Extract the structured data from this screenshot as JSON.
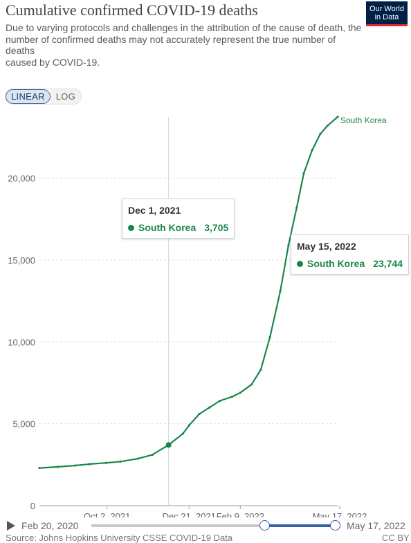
{
  "header": {
    "title": "Cumulative confirmed COVID-19 deaths",
    "subtitle_lines": [
      "Due to varying protocols and challenges in the attribution of the cause of death, the",
      "number of confirmed deaths may not accurately represent the true number of deaths",
      "caused by COVID-19."
    ],
    "logo_line1": "Our World",
    "logo_line2": "in Data"
  },
  "scale_toggle": {
    "linear_label": "LINEAR",
    "log_label": "LOG",
    "active": "linear"
  },
  "chart_data": {
    "type": "line",
    "title": "Cumulative confirmed COVID-19 deaths",
    "xlabel": "",
    "ylabel": "",
    "ylim": [
      0,
      23744
    ],
    "xlim": [
      "2021-07-28",
      "2022-05-15"
    ],
    "grid": "horizontal dashed",
    "y_ticks": [
      0,
      5000,
      10000,
      15000,
      20000
    ],
    "y_tick_labels": [
      "0",
      "5,000",
      "10,000",
      "15,000",
      "20,000"
    ],
    "x_ticks": [
      "2021-10-02",
      "2021-12-21",
      "2022-02-09",
      "2022-05-17"
    ],
    "x_tick_labels": [
      "Oct 2, 2021",
      "Dec 21, 2021",
      "Feb 9, 2022",
      "May 17, 2022"
    ],
    "series": [
      {
        "name": "South Korea",
        "color": "#18864b",
        "points": [
          [
            "2021-07-28",
            2300
          ],
          [
            "2021-08-15",
            2370
          ],
          [
            "2021-09-01",
            2450
          ],
          [
            "2021-09-15",
            2540
          ],
          [
            "2021-10-01",
            2610
          ],
          [
            "2021-10-15",
            2690
          ],
          [
            "2021-11-01",
            2870
          ],
          [
            "2021-11-15",
            3100
          ],
          [
            "2021-12-01",
            3705
          ],
          [
            "2021-12-15",
            4400
          ],
          [
            "2021-12-21",
            4900
          ],
          [
            "2021-12-31",
            5600
          ],
          [
            "2022-01-10",
            6000
          ],
          [
            "2022-01-20",
            6400
          ],
          [
            "2022-02-01",
            6650
          ],
          [
            "2022-02-09",
            6900
          ],
          [
            "2022-02-20",
            7400
          ],
          [
            "2022-03-01",
            8300
          ],
          [
            "2022-03-10",
            10300
          ],
          [
            "2022-03-20",
            13100
          ],
          [
            "2022-03-28",
            15900
          ],
          [
            "2022-04-05",
            18200
          ],
          [
            "2022-04-12",
            20300
          ],
          [
            "2022-04-20",
            21700
          ],
          [
            "2022-04-28",
            22700
          ],
          [
            "2022-05-05",
            23200
          ],
          [
            "2022-05-15",
            23744
          ]
        ]
      }
    ],
    "highlighted_point": {
      "date": "2021-12-01",
      "value": 3705
    },
    "hover_line_date": "2021-12-01",
    "tooltips": [
      {
        "date": "Dec 1, 2021",
        "series": "South Korea",
        "value": "3,705"
      },
      {
        "date": "May 15, 2022",
        "series": "South Korea",
        "value": "23,744"
      }
    ],
    "end_label": "South Korea"
  },
  "timeline": {
    "start_label": "Feb 20, 2020",
    "end_label": "May 17, 2022",
    "range_start_fraction": 0.71,
    "range_end_fraction": 1.0
  },
  "footer": {
    "source_text": "Source: Johns Hopkins University CSSE COVID-19 Data",
    "license_text": "CC BY"
  }
}
